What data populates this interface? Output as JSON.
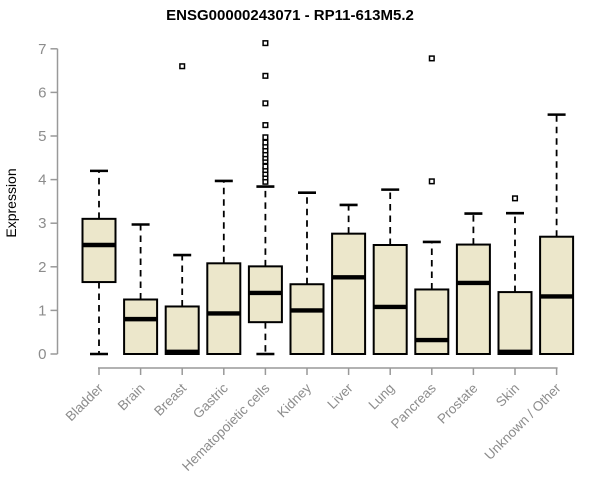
{
  "chart_data": {
    "type": "boxplot",
    "title": "ENSG00000243071 - RP11-613M5.2",
    "xlabel": "",
    "ylabel": "Expression",
    "ylim": [
      0,
      7
    ],
    "yticks": [
      0,
      1,
      2,
      3,
      4,
      5,
      6,
      7
    ],
    "grid": false,
    "legend": false,
    "categories": [
      "Bladder",
      "Brain",
      "Breast",
      "Gastric",
      "Hematopoietic cells",
      "Kidney",
      "Liver",
      "Lung",
      "Pancreas",
      "Prostate",
      "Skin",
      "Unknown / Other"
    ],
    "series": [
      {
        "name": "Bladder",
        "whisker_low": 0,
        "q1": 1.65,
        "median": 2.5,
        "q3": 3.1,
        "whisker_high": 4.2,
        "outliers": []
      },
      {
        "name": "Brain",
        "whisker_low": 0,
        "q1": 0,
        "median": 0.8,
        "q3": 1.25,
        "whisker_high": 2.97,
        "outliers": []
      },
      {
        "name": "Breast",
        "whisker_low": 0,
        "q1": 0,
        "median": 0.05,
        "q3": 1.09,
        "whisker_high": 2.27,
        "outliers": [
          6.6
        ]
      },
      {
        "name": "Gastric",
        "whisker_low": 0,
        "q1": 0,
        "median": 0.93,
        "q3": 2.08,
        "whisker_high": 3.97,
        "outliers": []
      },
      {
        "name": "Hematopoietic cells",
        "whisker_low": 0,
        "q1": 0.73,
        "median": 1.4,
        "q3": 2.01,
        "whisker_high": 3.84,
        "outliers": [
          3.95,
          4.05,
          4.13,
          4.22,
          4.3,
          4.42,
          4.5,
          4.58,
          4.67,
          4.76,
          4.85,
          4.97,
          5.25,
          5.75,
          6.38,
          7.13
        ]
      },
      {
        "name": "Kidney",
        "whisker_low": 0,
        "q1": 0,
        "median": 1.0,
        "q3": 1.6,
        "whisker_high": 3.7,
        "outliers": []
      },
      {
        "name": "Liver",
        "whisker_low": 0,
        "q1": 0,
        "median": 1.76,
        "q3": 2.76,
        "whisker_high": 3.42,
        "outliers": []
      },
      {
        "name": "Lung",
        "whisker_low": 0,
        "q1": 0,
        "median": 1.08,
        "q3": 2.5,
        "whisker_high": 3.77,
        "outliers": []
      },
      {
        "name": "Pancreas",
        "whisker_low": 0,
        "q1": 0,
        "median": 0.32,
        "q3": 1.48,
        "whisker_high": 2.57,
        "outliers": [
          3.96,
          6.78
        ]
      },
      {
        "name": "Prostate",
        "whisker_low": 0,
        "q1": 0,
        "median": 1.63,
        "q3": 2.51,
        "whisker_high": 3.22,
        "outliers": []
      },
      {
        "name": "Skin",
        "whisker_low": 0,
        "q1": 0,
        "median": 0.05,
        "q3": 1.42,
        "whisker_high": 3.23,
        "outliers": [
          3.57
        ]
      },
      {
        "name": "Unknown / Other",
        "whisker_low": 0,
        "q1": 0,
        "median": 1.32,
        "q3": 2.69,
        "whisker_high": 5.49,
        "outliers": []
      }
    ],
    "colors": {
      "box_fill": "#ece7cb",
      "box_border": "#000000",
      "median": "#000000",
      "whisker": "#000000",
      "outlier_fill": "#ffffff",
      "axis_line": "#999999",
      "tick_text": "#8c8c8c",
      "title_text": "#000000",
      "background": "#ffffff"
    }
  }
}
